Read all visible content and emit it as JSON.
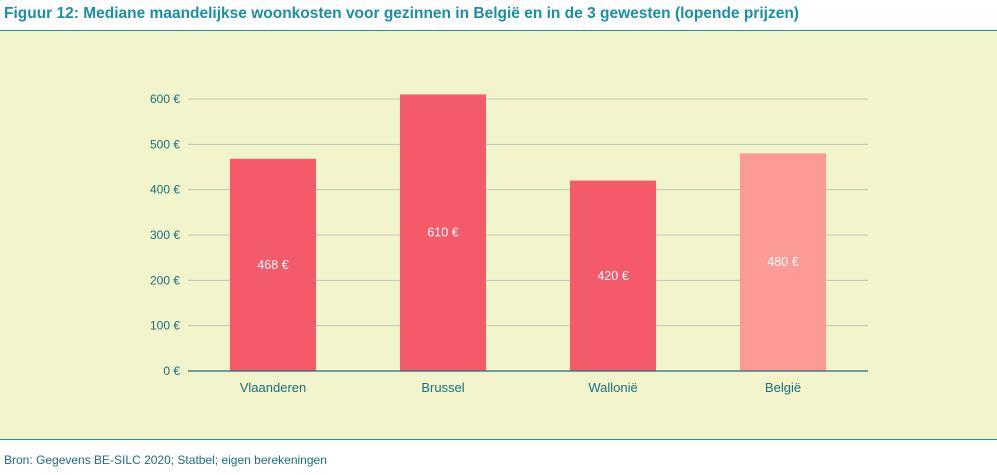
{
  "figure": {
    "title": "Figuur 12: Mediane maandelijkse woonkosten voor gezinnen in België en in de 3 gewesten (lopende prijzen)",
    "source": "Bron: Gegevens BE-SILC 2020; Statbel; eigen berekeningen"
  },
  "colors": {
    "title": "#1a8fa3",
    "panel_background": "#f2f5cb",
    "bar_region": "#f55a6a",
    "bar_belgium": "#fc9a96",
    "grid": "#b9c7bd",
    "axis_text": "#1a6f80"
  },
  "chart_data": {
    "type": "bar",
    "categories": [
      "Vlaanderen",
      "Brussel",
      "Wallonië",
      "België"
    ],
    "values": [
      468,
      610,
      420,
      480
    ],
    "data_labels": [
      "468 €",
      "610 €",
      "420 €",
      "480 €"
    ],
    "y_ticks": [
      0,
      100,
      200,
      300,
      400,
      500,
      600
    ],
    "y_tick_labels": [
      "0 €",
      "100 €",
      "200 €",
      "300 €",
      "400 €",
      "500 €",
      "600 €"
    ],
    "ylim": [
      0,
      600
    ],
    "grid": true,
    "legend": "none",
    "title": "",
    "xlabel": "",
    "ylabel": "",
    "highlight_category": "België"
  }
}
